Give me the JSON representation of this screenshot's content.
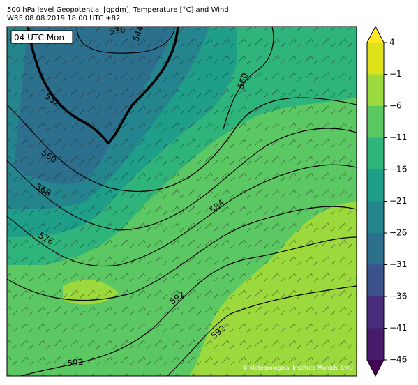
{
  "header": {
    "title": "500 hPa level Geopotential [gpdm], Temperature [°C] and Wind",
    "subtitle": "WRF 08.08.2019 18:00 UTC +82"
  },
  "map": {
    "time_label": "04 UTC Mon",
    "credit": "© Meteorological Institute Munich, LMU",
    "contour_labels": [
      "536",
      "544",
      "552",
      "560",
      "560",
      "568",
      "576",
      "584",
      "592",
      "592",
      "592"
    ]
  },
  "colorbar": {
    "ticks": [
      "4",
      "−1",
      "−6",
      "−11",
      "−16",
      "−21",
      "−26",
      "−31",
      "−36",
      "−41",
      "−46"
    ],
    "colors": [
      "#fde725",
      "#dde318",
      "#9bd93c",
      "#5cc863",
      "#2fb47c",
      "#1f9e89",
      "#25858e",
      "#2d708e",
      "#3b528b",
      "#472d7b",
      "#481a6c",
      "#440154"
    ]
  }
}
